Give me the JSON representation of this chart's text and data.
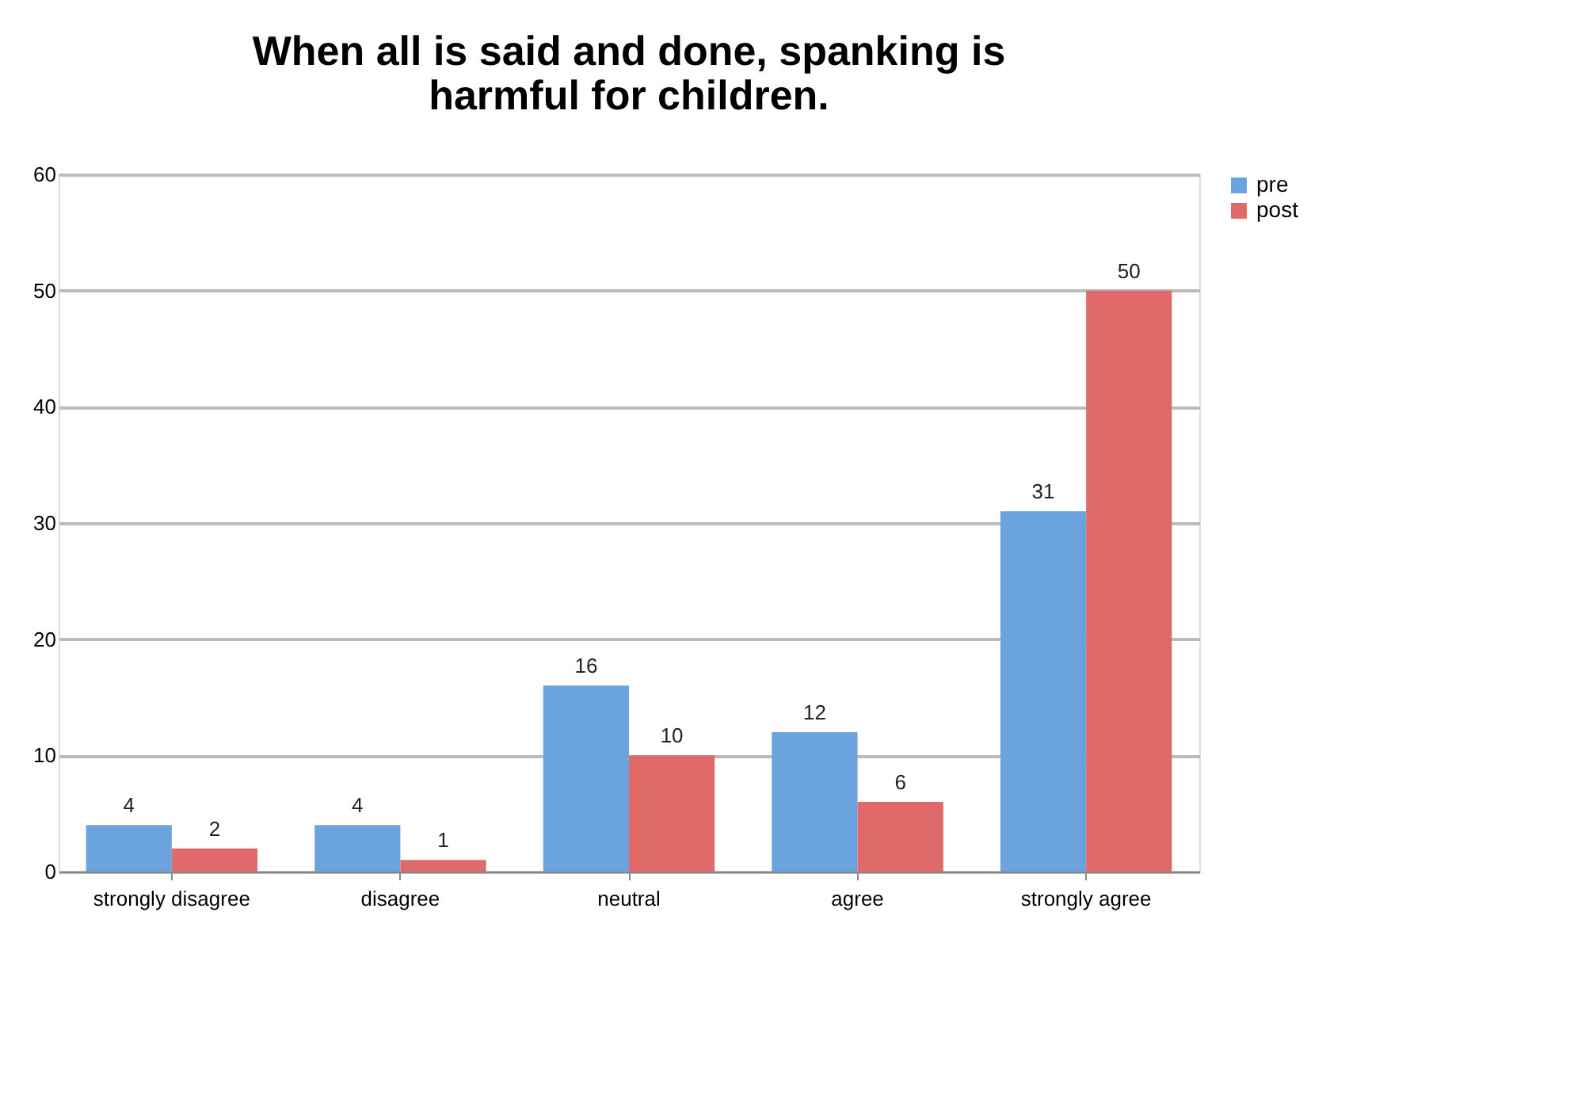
{
  "chart_data": {
    "type": "bar",
    "title": [
      "When all is said and done, spanking is",
      "harmful for children."
    ],
    "categories": [
      "strongly disagree",
      "disagree",
      "neutral",
      "agree",
      "strongly agree"
    ],
    "series": [
      {
        "name": "pre",
        "color": "#6aa3dd",
        "values": [
          4,
          4,
          16,
          12,
          31
        ]
      },
      {
        "name": "post",
        "color": "#e06a6a",
        "values": [
          2,
          1,
          10,
          6,
          50
        ]
      }
    ],
    "ylim": [
      0,
      60
    ],
    "yticks": [
      0,
      10,
      20,
      30,
      40,
      50,
      60
    ],
    "grid": "y",
    "legend": "right",
    "data_labels": true
  }
}
